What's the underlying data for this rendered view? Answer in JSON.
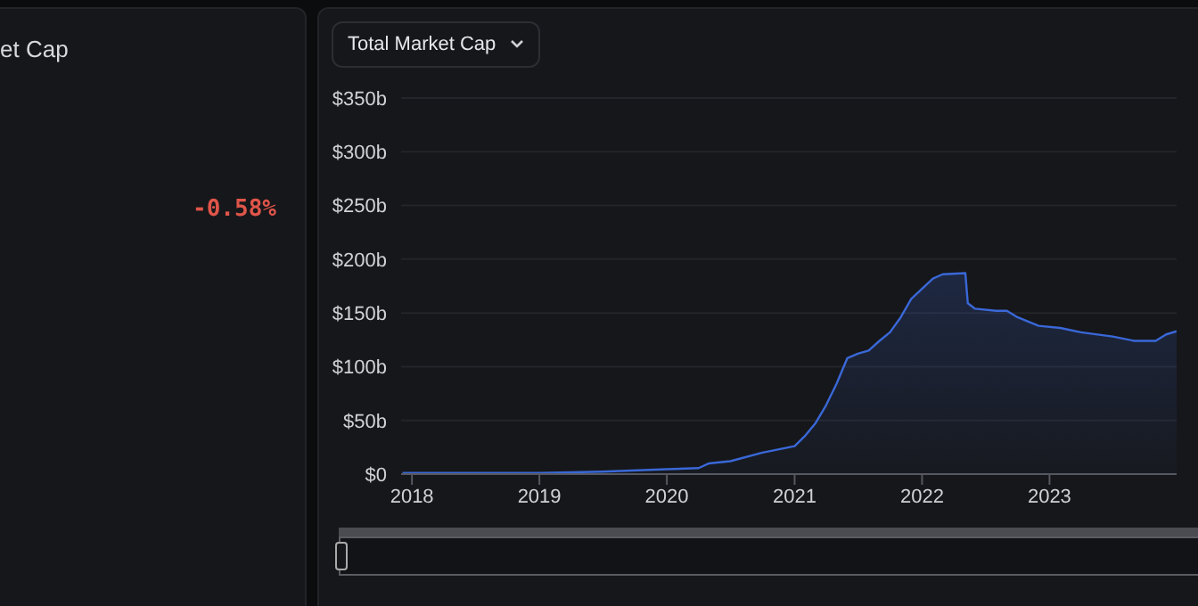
{
  "chart_data": {
    "type": "area",
    "title": "Total Market Cap",
    "annotations": [
      "et Cap",
      "-0.58%"
    ],
    "x": [
      "2017-12-05",
      "2019-01",
      "2019-07",
      "2020-01",
      "2020-04",
      "2020-05",
      "2020-07",
      "2020-10",
      "2021-01",
      "2021-02",
      "2021-03",
      "2021-04",
      "2021-05",
      "2021-06",
      "2021-07",
      "2021-08",
      "2021-09",
      "2021-10",
      "2021-11",
      "2021-12",
      "2022-02",
      "2022-03",
      "2022-05-05",
      "2022-05-12",
      "2022-06",
      "2022-08",
      "2022-09",
      "2022-10",
      "2022-12",
      "2023-02",
      "2023-04",
      "2023-07",
      "2023-09",
      "2023-11",
      "2023-12",
      "2023-12-31"
    ],
    "series": [
      {
        "color": "#3a68d8",
        "values": [
          1,
          1,
          2.3,
          4.5,
          5.6,
          10,
          12,
          20,
          26,
          36,
          47,
          64,
          84,
          108,
          112,
          115,
          124,
          132,
          146,
          163,
          182,
          186,
          187,
          159,
          154,
          152,
          152,
          146,
          138,
          136,
          132,
          128,
          124,
          124,
          130,
          133
        ]
      }
    ],
    "xlim": [
      "2017-12-01",
      "2023-12-31"
    ],
    "xticks": [
      "2018",
      "2019",
      "2020",
      "2021",
      "2022",
      "2023"
    ],
    "ylim": [
      0,
      350
    ],
    "yticks": [
      {
        "value": 0,
        "label": "$0"
      },
      {
        "value": 50,
        "label": "$50b"
      },
      {
        "value": 100,
        "label": "$100b"
      },
      {
        "value": 150,
        "label": "$150b"
      },
      {
        "value": 200,
        "label": "$200b"
      },
      {
        "value": 250,
        "label": "$250b"
      },
      {
        "value": 300,
        "label": "$300b"
      },
      {
        "value": 350,
        "label": "$350b"
      }
    ],
    "grid": "y",
    "legend": false
  }
}
